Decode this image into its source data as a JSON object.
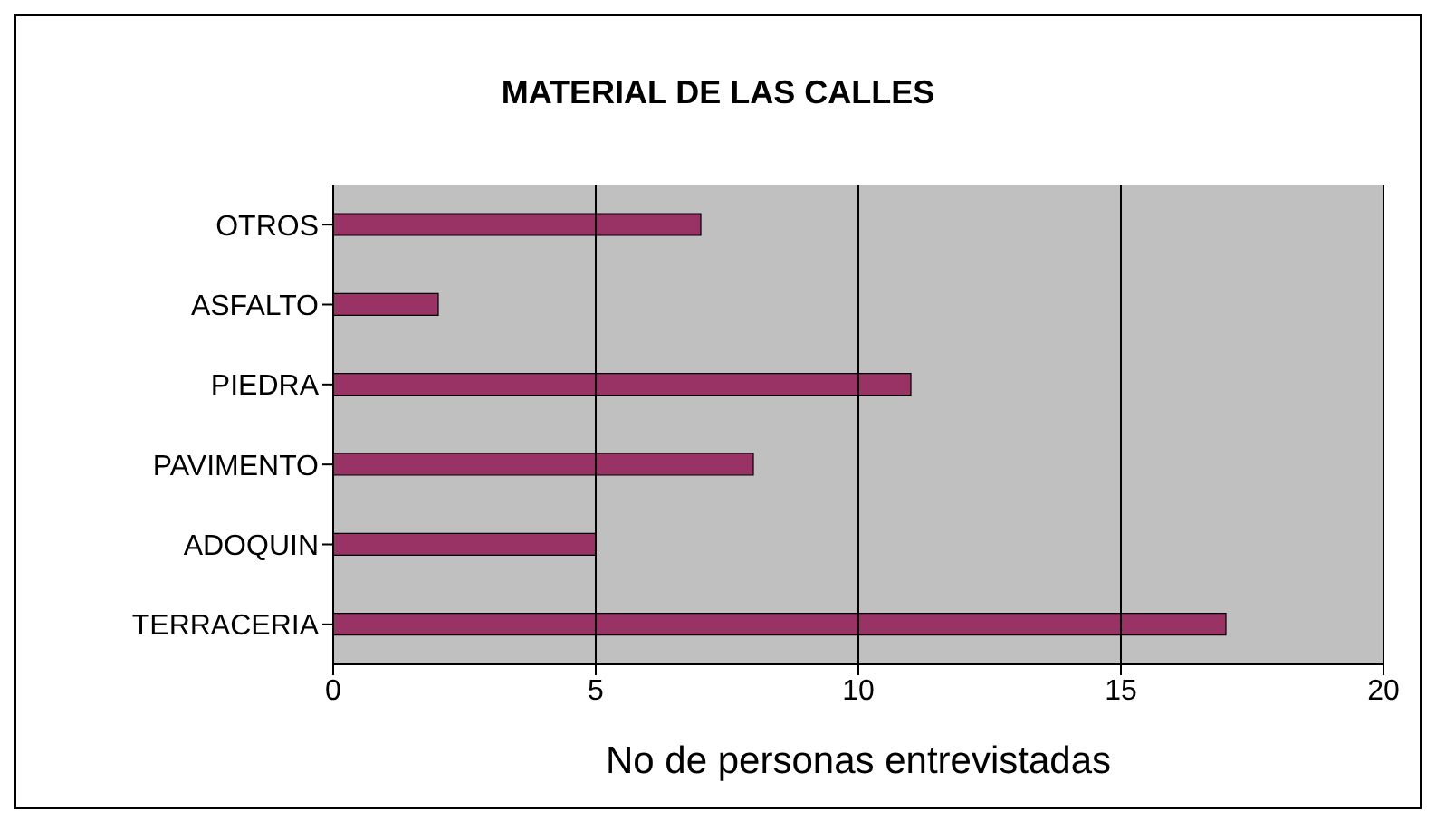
{
  "chart_data": {
    "type": "bar",
    "orientation": "horizontal",
    "title": "MATERIAL DE LAS CALLES",
    "xlabel": "No de personas entrevistadas",
    "categories": [
      "OTROS",
      "ASFALTO",
      "PIEDRA",
      "PAVIMENTO",
      "ADOQUIN",
      "TERRACERIA"
    ],
    "values": [
      7,
      2,
      11,
      8,
      5,
      17
    ],
    "color": "#993366",
    "xlim": [
      0,
      20
    ],
    "xticks": [
      0,
      5,
      10,
      15,
      20
    ],
    "grid": "x"
  }
}
